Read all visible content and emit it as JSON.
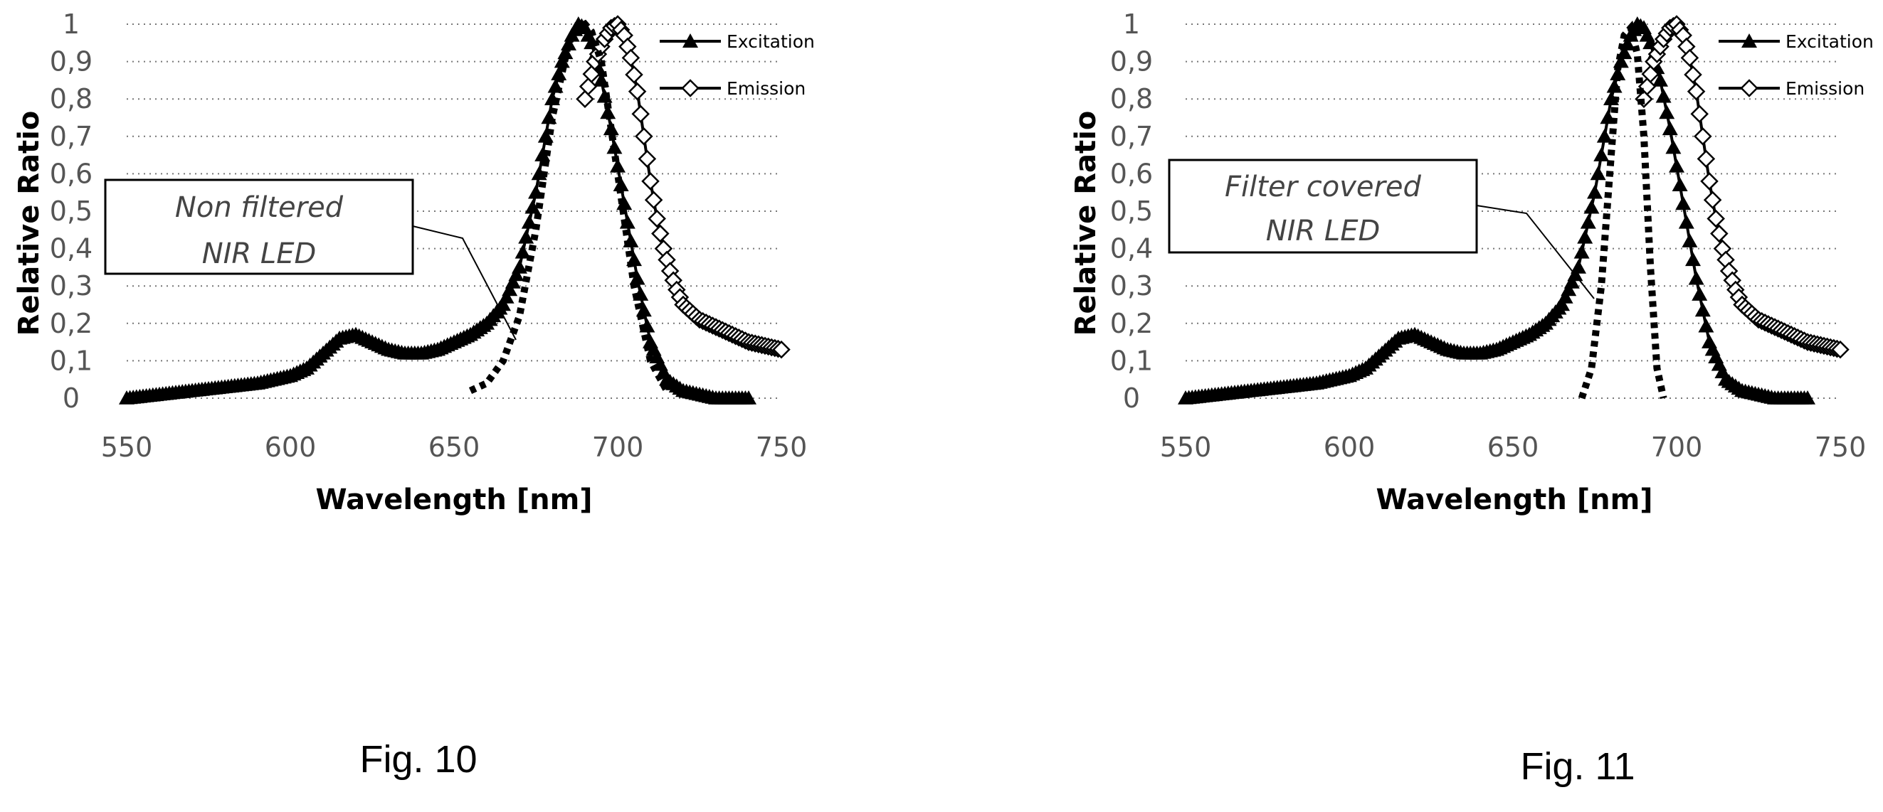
{
  "chart_data": [
    {
      "type": "line",
      "figure_label": "Fig. 10",
      "title": "",
      "xlabel": "Wavelength [nm]",
      "ylabel": "Relative Ratio",
      "xlim": [
        550,
        750
      ],
      "ylim": [
        0,
        1
      ],
      "x_ticks": [
        "550",
        "600",
        "650",
        "700",
        "750"
      ],
      "y_ticks": [
        "0",
        "0,1",
        "0,2",
        "0,3",
        "0,4",
        "0,5",
        "0,6",
        "0,7",
        "0,8",
        "0,9",
        "1"
      ],
      "grid": "horizontal dotted",
      "legend": "top-right",
      "annotation": {
        "line1": "Non filtered",
        "line2": "NIR LED"
      },
      "series": [
        {
          "name": "Excitation",
          "marker": "triangle",
          "x": [
            550,
            560,
            570,
            580,
            590,
            600,
            605,
            610,
            615,
            620,
            625,
            630,
            635,
            640,
            645,
            650,
            655,
            660,
            665,
            670,
            675,
            680,
            683,
            686,
            688,
            690,
            692,
            695,
            698,
            700,
            703,
            706,
            710,
            715,
            720,
            725,
            730,
            735,
            740
          ],
          "y": [
            0.0,
            0.01,
            0.02,
            0.03,
            0.04,
            0.06,
            0.08,
            0.12,
            0.16,
            0.17,
            0.15,
            0.13,
            0.12,
            0.12,
            0.13,
            0.15,
            0.17,
            0.2,
            0.25,
            0.35,
            0.55,
            0.8,
            0.9,
            0.97,
            1.0,
            0.99,
            0.95,
            0.85,
            0.72,
            0.62,
            0.47,
            0.32,
            0.15,
            0.05,
            0.02,
            0.01,
            0.0,
            0.0,
            0.0
          ]
        },
        {
          "name": "Emission",
          "marker": "diamond",
          "x": [
            690,
            693,
            696,
            698,
            700,
            702,
            704,
            706,
            708,
            710,
            712,
            714,
            716,
            718,
            720,
            725,
            730,
            735,
            740,
            745,
            750
          ],
          "y": [
            0.8,
            0.9,
            0.96,
            0.99,
            1.0,
            0.97,
            0.91,
            0.82,
            0.7,
            0.58,
            0.48,
            0.4,
            0.34,
            0.29,
            0.25,
            0.21,
            0.19,
            0.17,
            0.15,
            0.14,
            0.13
          ]
        },
        {
          "marker": "none",
          "line": "dotted",
          "x": [
            655,
            660,
            665,
            670,
            675,
            680,
            685,
            688,
            690,
            692,
            695,
            700,
            705,
            710,
            715
          ],
          "y": [
            0.02,
            0.04,
            0.1,
            0.22,
            0.45,
            0.75,
            0.95,
            0.99,
            1.0,
            0.98,
            0.9,
            0.6,
            0.3,
            0.1,
            0.02
          ]
        }
      ]
    },
    {
      "type": "line",
      "figure_label": "Fig. 11",
      "title": "",
      "xlabel": "Wavelength [nm]",
      "ylabel": "Relative Ratio",
      "xlim": [
        550,
        750
      ],
      "ylim": [
        0,
        1
      ],
      "x_ticks": [
        "550",
        "600",
        "650",
        "700",
        "750"
      ],
      "y_ticks": [
        "0",
        "0,1",
        "0,2",
        "0,3",
        "0,4",
        "0,5",
        "0,6",
        "0,7",
        "0,8",
        "0,9",
        "1"
      ],
      "grid": "horizontal dotted",
      "legend": "top-right",
      "annotation": {
        "line1": "Filter covered",
        "line2": "NIR LED"
      },
      "series": [
        {
          "name": "Excitation",
          "marker": "triangle",
          "x": [
            550,
            560,
            570,
            580,
            590,
            600,
            605,
            610,
            615,
            620,
            625,
            630,
            635,
            640,
            645,
            650,
            655,
            660,
            665,
            670,
            675,
            680,
            683,
            686,
            688,
            690,
            692,
            695,
            698,
            700,
            703,
            706,
            710,
            715,
            720,
            725,
            730,
            735,
            740
          ],
          "y": [
            0.0,
            0.01,
            0.02,
            0.03,
            0.04,
            0.06,
            0.08,
            0.12,
            0.16,
            0.17,
            0.15,
            0.13,
            0.12,
            0.12,
            0.13,
            0.15,
            0.17,
            0.2,
            0.25,
            0.35,
            0.55,
            0.8,
            0.9,
            0.97,
            1.0,
            0.99,
            0.95,
            0.85,
            0.72,
            0.62,
            0.47,
            0.32,
            0.15,
            0.05,
            0.02,
            0.01,
            0.0,
            0.0,
            0.0
          ]
        },
        {
          "name": "Emission",
          "marker": "diamond",
          "x": [
            690,
            693,
            696,
            698,
            700,
            702,
            704,
            706,
            708,
            710,
            712,
            714,
            716,
            718,
            720,
            725,
            730,
            735,
            740,
            745,
            750
          ],
          "y": [
            0.8,
            0.9,
            0.96,
            0.99,
            1.0,
            0.97,
            0.91,
            0.82,
            0.7,
            0.58,
            0.48,
            0.4,
            0.34,
            0.29,
            0.25,
            0.21,
            0.19,
            0.17,
            0.15,
            0.14,
            0.13
          ]
        },
        {
          "marker": "none",
          "line": "dotted",
          "x": [
            671,
            674,
            677,
            680,
            682,
            684,
            686,
            688,
            690,
            692,
            694,
            696
          ],
          "y": [
            0.0,
            0.08,
            0.3,
            0.65,
            0.88,
            0.97,
            0.99,
            0.92,
            0.7,
            0.35,
            0.08,
            0.0
          ]
        }
      ]
    }
  ]
}
